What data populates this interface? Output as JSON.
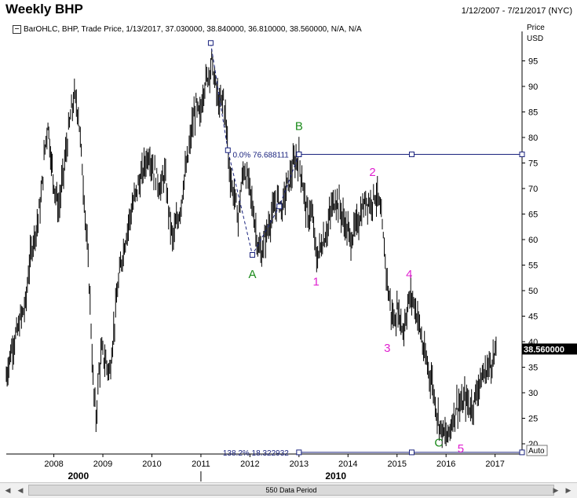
{
  "header": {
    "title": "Weekly BHP",
    "date_range": "1/12/2007 - 7/21/2017 (NYC)",
    "legend": "BarOHLC, BHP, Trade Price, 1/13/2017, 37.030000, 38.840000, 36.810000, 38.560000, N/A, N/A"
  },
  "price_axis": {
    "title_line1": "Price",
    "title_line2": "USD",
    "ticks": [
      20,
      25,
      30,
      35,
      40,
      45,
      50,
      55,
      60,
      65,
      70,
      75,
      80,
      85,
      90,
      95
    ],
    "last_price_label": "38.560000",
    "auto_label": "Auto"
  },
  "time_axis": {
    "year_ticks": [
      "2008",
      "2009",
      "2010",
      "2011",
      "2012",
      "2013",
      "2014",
      "2015",
      "2016",
      "2017"
    ],
    "decade_labels": [
      {
        "label": "2000",
        "year": 2008.5
      },
      {
        "label": "2010",
        "year": 2013.75
      }
    ]
  },
  "scrollbar": {
    "label": "550 Data Period",
    "left_icon": "scroll-left-icon",
    "right_icon": "scroll-right-icon"
  },
  "fib_lines": [
    {
      "label": "0.0%  76.688111",
      "price": 76.688111,
      "color": "#1a237e"
    },
    {
      "label": "138.2%  18.322932",
      "price": 18.322932,
      "color": "#1a237e"
    }
  ],
  "wave_labels": [
    {
      "text": "A",
      "year": 2012.05,
      "price": 52.5,
      "color": "#1a8a1a"
    },
    {
      "text": "B",
      "year": 2013.0,
      "price": 81.5,
      "color": "#1a8a1a"
    },
    {
      "text": "C",
      "year": 2015.85,
      "price": 19.5,
      "color": "#1a8a1a"
    },
    {
      "text": "1",
      "year": 2013.35,
      "price": 51.0,
      "color": "#e020d0"
    },
    {
      "text": "2",
      "year": 2014.5,
      "price": 72.5,
      "color": "#e020d0"
    },
    {
      "text": "3",
      "year": 2014.8,
      "price": 38.0,
      "color": "#e020d0"
    },
    {
      "text": "4",
      "year": 2015.25,
      "price": 52.5,
      "color": "#e020d0"
    },
    {
      "text": "5",
      "year": 2016.3,
      "price": 18.3,
      "color": "#e020d0"
    }
  ],
  "colors": {
    "bars": "#000000",
    "annotation": "#1a237e",
    "grid": "#000000"
  },
  "chart_data": {
    "type": "ohlc",
    "title": "Weekly BHP",
    "xlabel": "",
    "ylabel": "Price USD",
    "ylim": [
      18,
      100
    ],
    "xlim": [
      2007.03,
      2017.55
    ],
    "grid": false,
    "series": [
      {
        "name": "BHP",
        "points": [
          [
            2007.03,
            33
          ],
          [
            2007.1,
            37
          ],
          [
            2007.18,
            40
          ],
          [
            2007.26,
            42
          ],
          [
            2007.34,
            45
          ],
          [
            2007.42,
            47
          ],
          [
            2007.5,
            55
          ],
          [
            2007.58,
            60
          ],
          [
            2007.66,
            63
          ],
          [
            2007.74,
            68
          ],
          [
            2007.82,
            78
          ],
          [
            2007.88,
            83
          ],
          [
            2007.95,
            75
          ],
          [
            2008.02,
            70
          ],
          [
            2008.1,
            66
          ],
          [
            2008.18,
            72
          ],
          [
            2008.26,
            78
          ],
          [
            2008.34,
            84
          ],
          [
            2008.42,
            88
          ],
          [
            2008.5,
            85
          ],
          [
            2008.58,
            74
          ],
          [
            2008.66,
            62
          ],
          [
            2008.74,
            48
          ],
          [
            2008.8,
            32
          ],
          [
            2008.86,
            25
          ],
          [
            2008.92,
            34
          ],
          [
            2008.98,
            38
          ],
          [
            2009.06,
            36
          ],
          [
            2009.14,
            34
          ],
          [
            2009.22,
            42
          ],
          [
            2009.3,
            50
          ],
          [
            2009.38,
            56
          ],
          [
            2009.46,
            60
          ],
          [
            2009.54,
            64
          ],
          [
            2009.62,
            67
          ],
          [
            2009.7,
            70
          ],
          [
            2009.78,
            72
          ],
          [
            2009.86,
            75
          ],
          [
            2009.94,
            77
          ],
          [
            2010.02,
            74
          ],
          [
            2010.1,
            72
          ],
          [
            2010.18,
            70
          ],
          [
            2010.26,
            73
          ],
          [
            2010.34,
            66
          ],
          [
            2010.42,
            60
          ],
          [
            2010.5,
            63
          ],
          [
            2010.58,
            66
          ],
          [
            2010.66,
            72
          ],
          [
            2010.74,
            76
          ],
          [
            2010.82,
            82
          ],
          [
            2010.9,
            86
          ],
          [
            2010.98,
            84
          ],
          [
            2011.06,
            90
          ],
          [
            2011.14,
            92
          ],
          [
            2011.22,
            95
          ],
          [
            2011.3,
            90
          ],
          [
            2011.38,
            86
          ],
          [
            2011.46,
            88
          ],
          [
            2011.52,
            82
          ],
          [
            2011.58,
            74
          ],
          [
            2011.64,
            70
          ],
          [
            2011.7,
            68
          ],
          [
            2011.76,
            64
          ],
          [
            2011.82,
            70
          ],
          [
            2011.88,
            74
          ],
          [
            2011.94,
            72
          ],
          [
            2012.0,
            70
          ],
          [
            2012.06,
            66
          ],
          [
            2012.12,
            62
          ],
          [
            2012.18,
            58
          ],
          [
            2012.24,
            57
          ],
          [
            2012.3,
            60
          ],
          [
            2012.36,
            62
          ],
          [
            2012.42,
            64
          ],
          [
            2012.5,
            66
          ],
          [
            2012.58,
            68
          ],
          [
            2012.66,
            66
          ],
          [
            2012.74,
            70
          ],
          [
            2012.82,
            72
          ],
          [
            2012.9,
            75
          ],
          [
            2013.0,
            76
          ],
          [
            2013.06,
            72
          ],
          [
            2013.12,
            68
          ],
          [
            2013.18,
            64
          ],
          [
            2013.24,
            66
          ],
          [
            2013.3,
            62
          ],
          [
            2013.36,
            56
          ],
          [
            2013.42,
            58
          ],
          [
            2013.5,
            60
          ],
          [
            2013.58,
            62
          ],
          [
            2013.66,
            66
          ],
          [
            2013.74,
            68
          ],
          [
            2013.82,
            67
          ],
          [
            2013.9,
            64
          ],
          [
            2013.98,
            62
          ],
          [
            2014.06,
            60
          ],
          [
            2014.14,
            62
          ],
          [
            2014.22,
            64
          ],
          [
            2014.3,
            66
          ],
          [
            2014.38,
            68
          ],
          [
            2014.46,
            67
          ],
          [
            2014.54,
            69
          ],
          [
            2014.62,
            68
          ],
          [
            2014.7,
            62
          ],
          [
            2014.76,
            56
          ],
          [
            2014.82,
            50
          ],
          [
            2014.88,
            46
          ],
          [
            2014.94,
            44
          ],
          [
            2015.0,
            46
          ],
          [
            2015.06,
            45
          ],
          [
            2015.12,
            42
          ],
          [
            2015.18,
            45
          ],
          [
            2015.24,
            48
          ],
          [
            2015.3,
            49
          ],
          [
            2015.36,
            47
          ],
          [
            2015.42,
            45
          ],
          [
            2015.48,
            42
          ],
          [
            2015.54,
            38
          ],
          [
            2015.6,
            36
          ],
          [
            2015.66,
            34
          ],
          [
            2015.72,
            32
          ],
          [
            2015.78,
            28
          ],
          [
            2015.84,
            25
          ],
          [
            2015.9,
            23
          ],
          [
            2015.96,
            22
          ],
          [
            2016.02,
            21
          ],
          [
            2016.08,
            23
          ],
          [
            2016.14,
            25
          ],
          [
            2016.2,
            27
          ],
          [
            2016.26,
            28
          ],
          [
            2016.32,
            27
          ],
          [
            2016.38,
            29
          ],
          [
            2016.44,
            28
          ],
          [
            2016.5,
            27
          ],
          [
            2016.56,
            28
          ],
          [
            2016.62,
            30
          ],
          [
            2016.68,
            32
          ],
          [
            2016.74,
            33
          ],
          [
            2016.8,
            34
          ],
          [
            2016.86,
            35
          ],
          [
            2016.92,
            36
          ],
          [
            2016.98,
            37
          ],
          [
            2017.04,
            38.56
          ]
        ]
      },
      {
        "name": "ABC wave",
        "points": [
          [
            2011.2,
            98.5
          ],
          [
            2011.55,
            77.5
          ],
          [
            2012.05,
            57
          ],
          [
            2012.6,
            66.5
          ],
          [
            2013.0,
            76.7
          ]
        ]
      }
    ]
  }
}
